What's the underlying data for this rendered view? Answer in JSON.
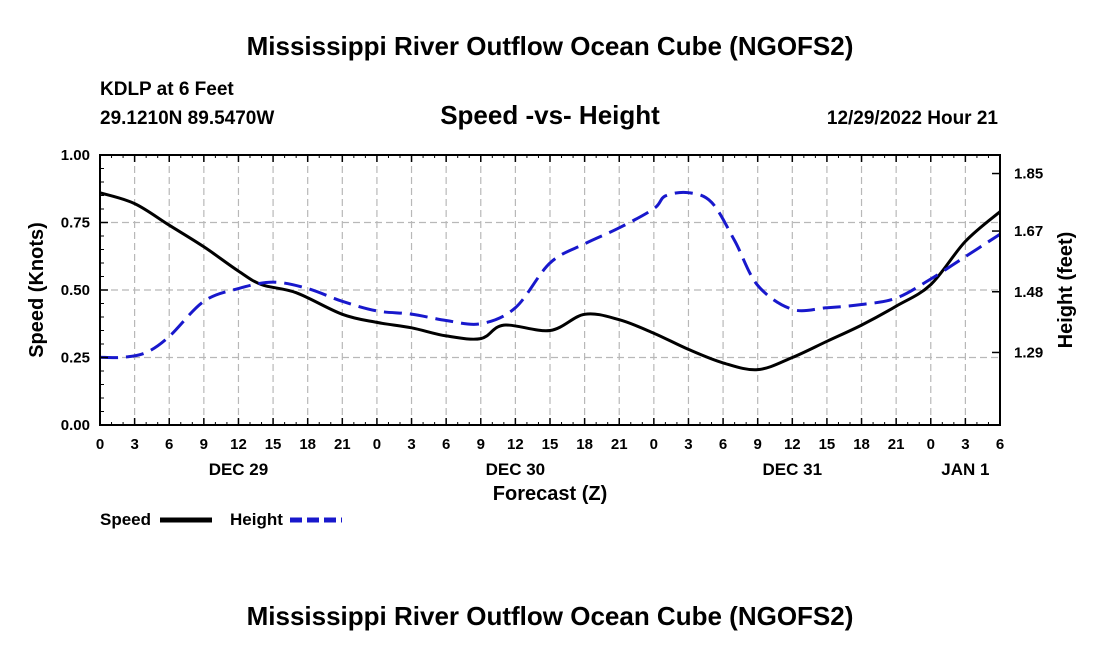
{
  "page": {
    "title": "Mississippi River Outflow Ocean Cube (NGOFS2)",
    "footer_title": "Mississippi River Outflow Ocean Cube (NGOFS2)"
  },
  "station": {
    "name": "KDLP at 6 Feet",
    "coords": "29.1210N  89.5470W",
    "run": "12/29/2022 Hour 21"
  },
  "chart_data": {
    "type": "line",
    "title": "Speed -vs- Height",
    "xlabel": "Forecast (Z)",
    "ylabel": "Speed (Knots)",
    "y2label": "Height (feet)",
    "x_unit": "hours from Dec 29 00Z",
    "xlim": [
      0,
      78
    ],
    "ylim": [
      0,
      1
    ],
    "y2lim": [
      1.063,
      1.908
    ],
    "x_ticks": [
      0,
      3,
      6,
      9,
      12,
      15,
      18,
      21,
      24,
      27,
      30,
      33,
      36,
      39,
      42,
      45,
      48,
      51,
      54,
      57,
      60,
      63,
      66,
      69,
      72,
      75,
      78
    ],
    "x_tick_labels": [
      "0",
      "3",
      "6",
      "9",
      "12",
      "15",
      "18",
      "21",
      "0",
      "3",
      "6",
      "9",
      "12",
      "15",
      "18",
      "21",
      "0",
      "3",
      "6",
      "9",
      "12",
      "15",
      "18",
      "21",
      "0",
      "3",
      "6"
    ],
    "day_labels": [
      {
        "x": 12,
        "label": "DEC 29"
      },
      {
        "x": 36,
        "label": "DEC 30"
      },
      {
        "x": 60,
        "label": "DEC 31"
      },
      {
        "x": 75,
        "label": "JAN 1"
      }
    ],
    "y_ticks": [
      0.0,
      0.25,
      0.5,
      0.75,
      1.0
    ],
    "y_tick_labels": [
      "0.00",
      "0.25",
      "0.50",
      "0.75",
      "1.00"
    ],
    "y2_ticks": [
      1.29,
      1.48,
      1.67,
      1.85
    ],
    "y2_tick_labels": [
      "1.29",
      "1.48",
      "1.67",
      "1.85"
    ],
    "grid": true,
    "series": [
      {
        "name": "Speed",
        "axis": "left",
        "color": "#000000",
        "dash": "solid",
        "x": [
          0,
          3,
          6,
          9,
          12,
          14,
          17,
          21,
          24,
          27,
          30,
          33,
          35,
          39,
          42,
          45,
          48,
          51,
          54,
          57,
          60,
          63,
          66,
          69,
          72,
          75,
          78
        ],
        "values": [
          0.86,
          0.82,
          0.74,
          0.66,
          0.57,
          0.52,
          0.49,
          0.41,
          0.38,
          0.36,
          0.33,
          0.32,
          0.37,
          0.35,
          0.41,
          0.39,
          0.34,
          0.28,
          0.23,
          0.205,
          0.25,
          0.31,
          0.37,
          0.44,
          0.52,
          0.68,
          0.79
        ]
      },
      {
        "name": "Height",
        "axis": "right",
        "color": "#1818cc",
        "dash": "dashed",
        "x": [
          0,
          2,
          4,
          6,
          9,
          12,
          15,
          18,
          21,
          24,
          27,
          30,
          33,
          36,
          39,
          42,
          45,
          48,
          49,
          51,
          53,
          55,
          57,
          60,
          63,
          66,
          69,
          72,
          75,
          78
        ],
        "values": [
          1.275,
          1.275,
          1.29,
          1.34,
          1.45,
          1.49,
          1.51,
          1.49,
          1.45,
          1.42,
          1.41,
          1.39,
          1.38,
          1.43,
          1.57,
          1.63,
          1.68,
          1.74,
          1.78,
          1.79,
          1.76,
          1.64,
          1.5,
          1.425,
          1.43,
          1.44,
          1.46,
          1.52,
          1.59,
          1.66
        ]
      }
    ]
  },
  "legend": {
    "speed_label": "Speed",
    "height_label": "Height"
  }
}
